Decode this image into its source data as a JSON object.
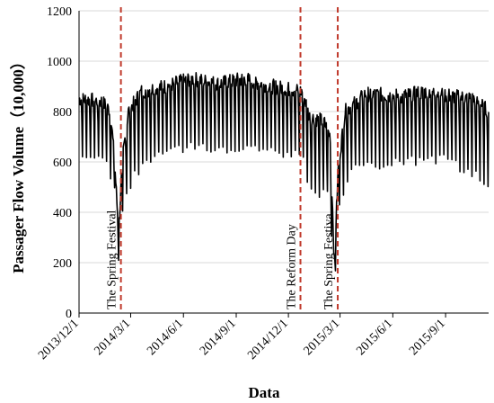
{
  "chart_data": {
    "type": "line",
    "title": "",
    "xlabel": "Data",
    "ylabel": "Passager Flow Volume（10,000）",
    "ylim": [
      0,
      1200
    ],
    "yticks": [
      0,
      200,
      400,
      600,
      800,
      1000,
      1200
    ],
    "xlim": [
      "2013-12-01",
      "2015-11-15"
    ],
    "xticks": [
      {
        "date": "2013-12-01",
        "label": "2013/12/1"
      },
      {
        "date": "2014-03-01",
        "label": "2014/3/1"
      },
      {
        "date": "2014-06-01",
        "label": "2014/6/1"
      },
      {
        "date": "2014-09-01",
        "label": "2014/9/1"
      },
      {
        "date": "2014-12-01",
        "label": "2014/12/1"
      },
      {
        "date": "2015-03-01",
        "label": "2015/3/1"
      },
      {
        "date": "2015-06-01",
        "label": "2015/6/1"
      },
      {
        "date": "2015-09-01",
        "label": "2015/9/1"
      }
    ],
    "grid": "horizontal",
    "series": [
      {
        "weekday_level": [
          {
            "date": "2013-12-01",
            "value": 850
          },
          {
            "date": "2014-01-10",
            "value": 840
          },
          {
            "date": "2014-01-25",
            "value": 800
          },
          {
            "date": "2014-02-01",
            "value": 600
          },
          {
            "date": "2014-02-08",
            "value": 320
          },
          {
            "date": "2014-02-15",
            "value": 620
          },
          {
            "date": "2014-02-25",
            "value": 800
          },
          {
            "date": "2014-03-20",
            "value": 880
          },
          {
            "date": "2014-05-01",
            "value": 900
          },
          {
            "date": "2014-06-15",
            "value": 930
          },
          {
            "date": "2014-08-01",
            "value": 910
          },
          {
            "date": "2014-09-15",
            "value": 930
          },
          {
            "date": "2014-11-01",
            "value": 900
          },
          {
            "date": "2014-12-25",
            "value": 880
          },
          {
            "date": "2015-01-01",
            "value": 830
          },
          {
            "date": "2015-01-06",
            "value": 780
          },
          {
            "date": "2015-02-01",
            "value": 760
          },
          {
            "date": "2015-02-12",
            "value": 700
          },
          {
            "date": "2015-02-19",
            "value": 200
          },
          {
            "date": "2015-02-26",
            "value": 580
          },
          {
            "date": "2015-03-10",
            "value": 800
          },
          {
            "date": "2015-04-15",
            "value": 870
          },
          {
            "date": "2015-06-15",
            "value": 860
          },
          {
            "date": "2015-08-01",
            "value": 880
          },
          {
            "date": "2015-09-15",
            "value": 860
          },
          {
            "date": "2015-10-20",
            "value": 850
          },
          {
            "date": "2015-11-15",
            "value": 800
          }
        ],
        "weekend_level": [
          {
            "date": "2013-12-01",
            "value": 640
          },
          {
            "date": "2014-01-15",
            "value": 620
          },
          {
            "date": "2014-02-01",
            "value": 500
          },
          {
            "date": "2014-02-08",
            "value": 220
          },
          {
            "date": "2014-02-18",
            "value": 460
          },
          {
            "date": "2014-03-10",
            "value": 560
          },
          {
            "date": "2014-05-01",
            "value": 650
          },
          {
            "date": "2014-07-01",
            "value": 660
          },
          {
            "date": "2014-09-01",
            "value": 650
          },
          {
            "date": "2014-11-15",
            "value": 640
          },
          {
            "date": "2014-12-25",
            "value": 630
          },
          {
            "date": "2015-01-01",
            "value": 540
          },
          {
            "date": "2015-01-15",
            "value": 480
          },
          {
            "date": "2015-02-10",
            "value": 470
          },
          {
            "date": "2015-02-19",
            "value": 110
          },
          {
            "date": "2015-03-01",
            "value": 450
          },
          {
            "date": "2015-03-20",
            "value": 570
          },
          {
            "date": "2015-06-01",
            "value": 600
          },
          {
            "date": "2015-09-01",
            "value": 610
          },
          {
            "date": "2015-11-15",
            "value": 520
          }
        ],
        "weekly_pattern_days": 7
      }
    ],
    "reference_lines": [
      {
        "date": "2014-02-12",
        "label": "The Spring Festival"
      },
      {
        "date": "2014-12-22",
        "label": "The Reform Day"
      },
      {
        "date": "2015-02-25",
        "label": "The Spring Festiva"
      }
    ],
    "reference_line_color": "#c0392b",
    "series_color": "#000000",
    "grid_color": "#d9d9d9"
  }
}
